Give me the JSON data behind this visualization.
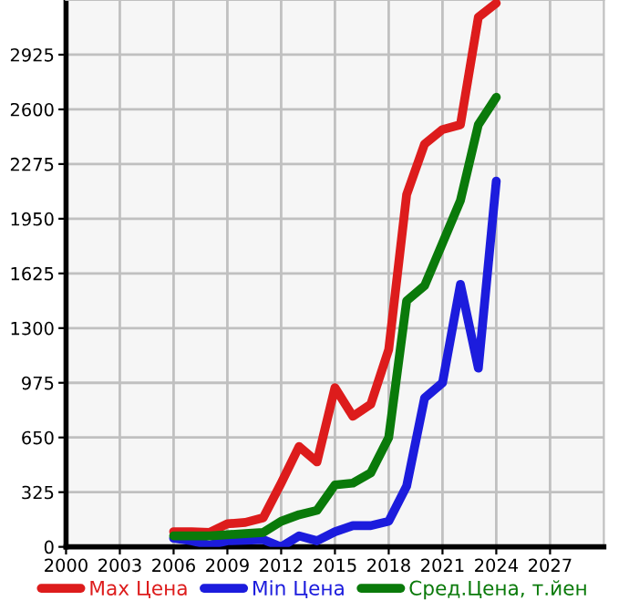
{
  "chart_data": {
    "type": "line",
    "x": [
      2006,
      2007,
      2008,
      2009,
      2010,
      2011,
      2012,
      2013,
      2014,
      2015,
      2016,
      2017,
      2018,
      2019,
      2020,
      2021,
      2022,
      2023,
      2024
    ],
    "series": [
      {
        "name": "Max Цена",
        "color": "#dd1c1c",
        "values": [
          90,
          90,
          85,
          137,
          145,
          173,
          379,
          596,
          505,
          946,
          776,
          848,
          1173,
          2094,
          2394,
          2480,
          2509,
          3148,
          3231
        ]
      },
      {
        "name": "Min Цена",
        "color": "#1c1cdd",
        "values": [
          51,
          36,
          11,
          36,
          40,
          43,
          0,
          65,
          36,
          90,
          126,
          126,
          152,
          361,
          884,
          975,
          1560,
          1062,
          2174
        ]
      },
      {
        "name": "Сред.Цена, т.йен",
        "color": "#0a7a0a",
        "values": [
          65,
          65,
          65,
          72,
          79,
          85,
          152,
          191,
          217,
          368,
          379,
          440,
          650,
          1462,
          1552,
          1805,
          2058,
          2509,
          2672
        ]
      }
    ],
    "xlim": [
      2000,
      2030
    ],
    "xticks": [
      2000,
      2003,
      2006,
      2009,
      2012,
      2015,
      2018,
      2021,
      2024,
      2027
    ],
    "ylim": [
      0,
      3250
    ],
    "yticks": [
      0,
      325,
      650,
      975,
      1300,
      1625,
      1950,
      2275,
      2600,
      2925
    ],
    "grid": true,
    "legend": "bottom",
    "marker": "none",
    "line_style": "solid"
  }
}
